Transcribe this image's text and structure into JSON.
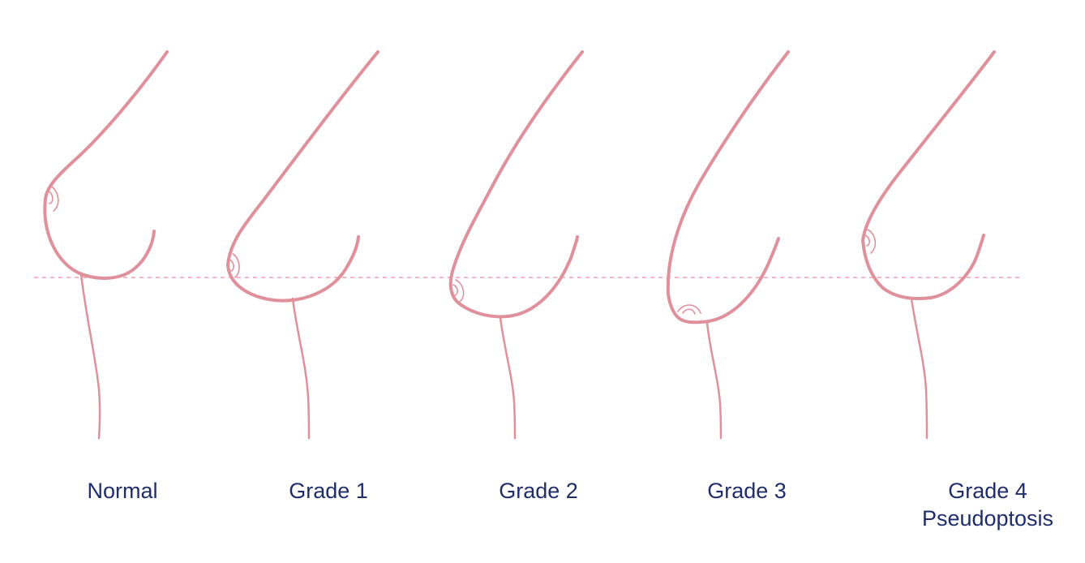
{
  "colors": {
    "outline": "#e0909a",
    "guide_line": "#f2b8c6",
    "label_text": "#1f2d6b",
    "background": "#ffffff"
  },
  "labels": {
    "normal": "Normal",
    "grade1": "Grade 1",
    "grade2": "Grade 2",
    "grade3": "Grade 3",
    "grade4_line1": "Grade 4",
    "grade4_line2": "Pseudoptosis"
  }
}
